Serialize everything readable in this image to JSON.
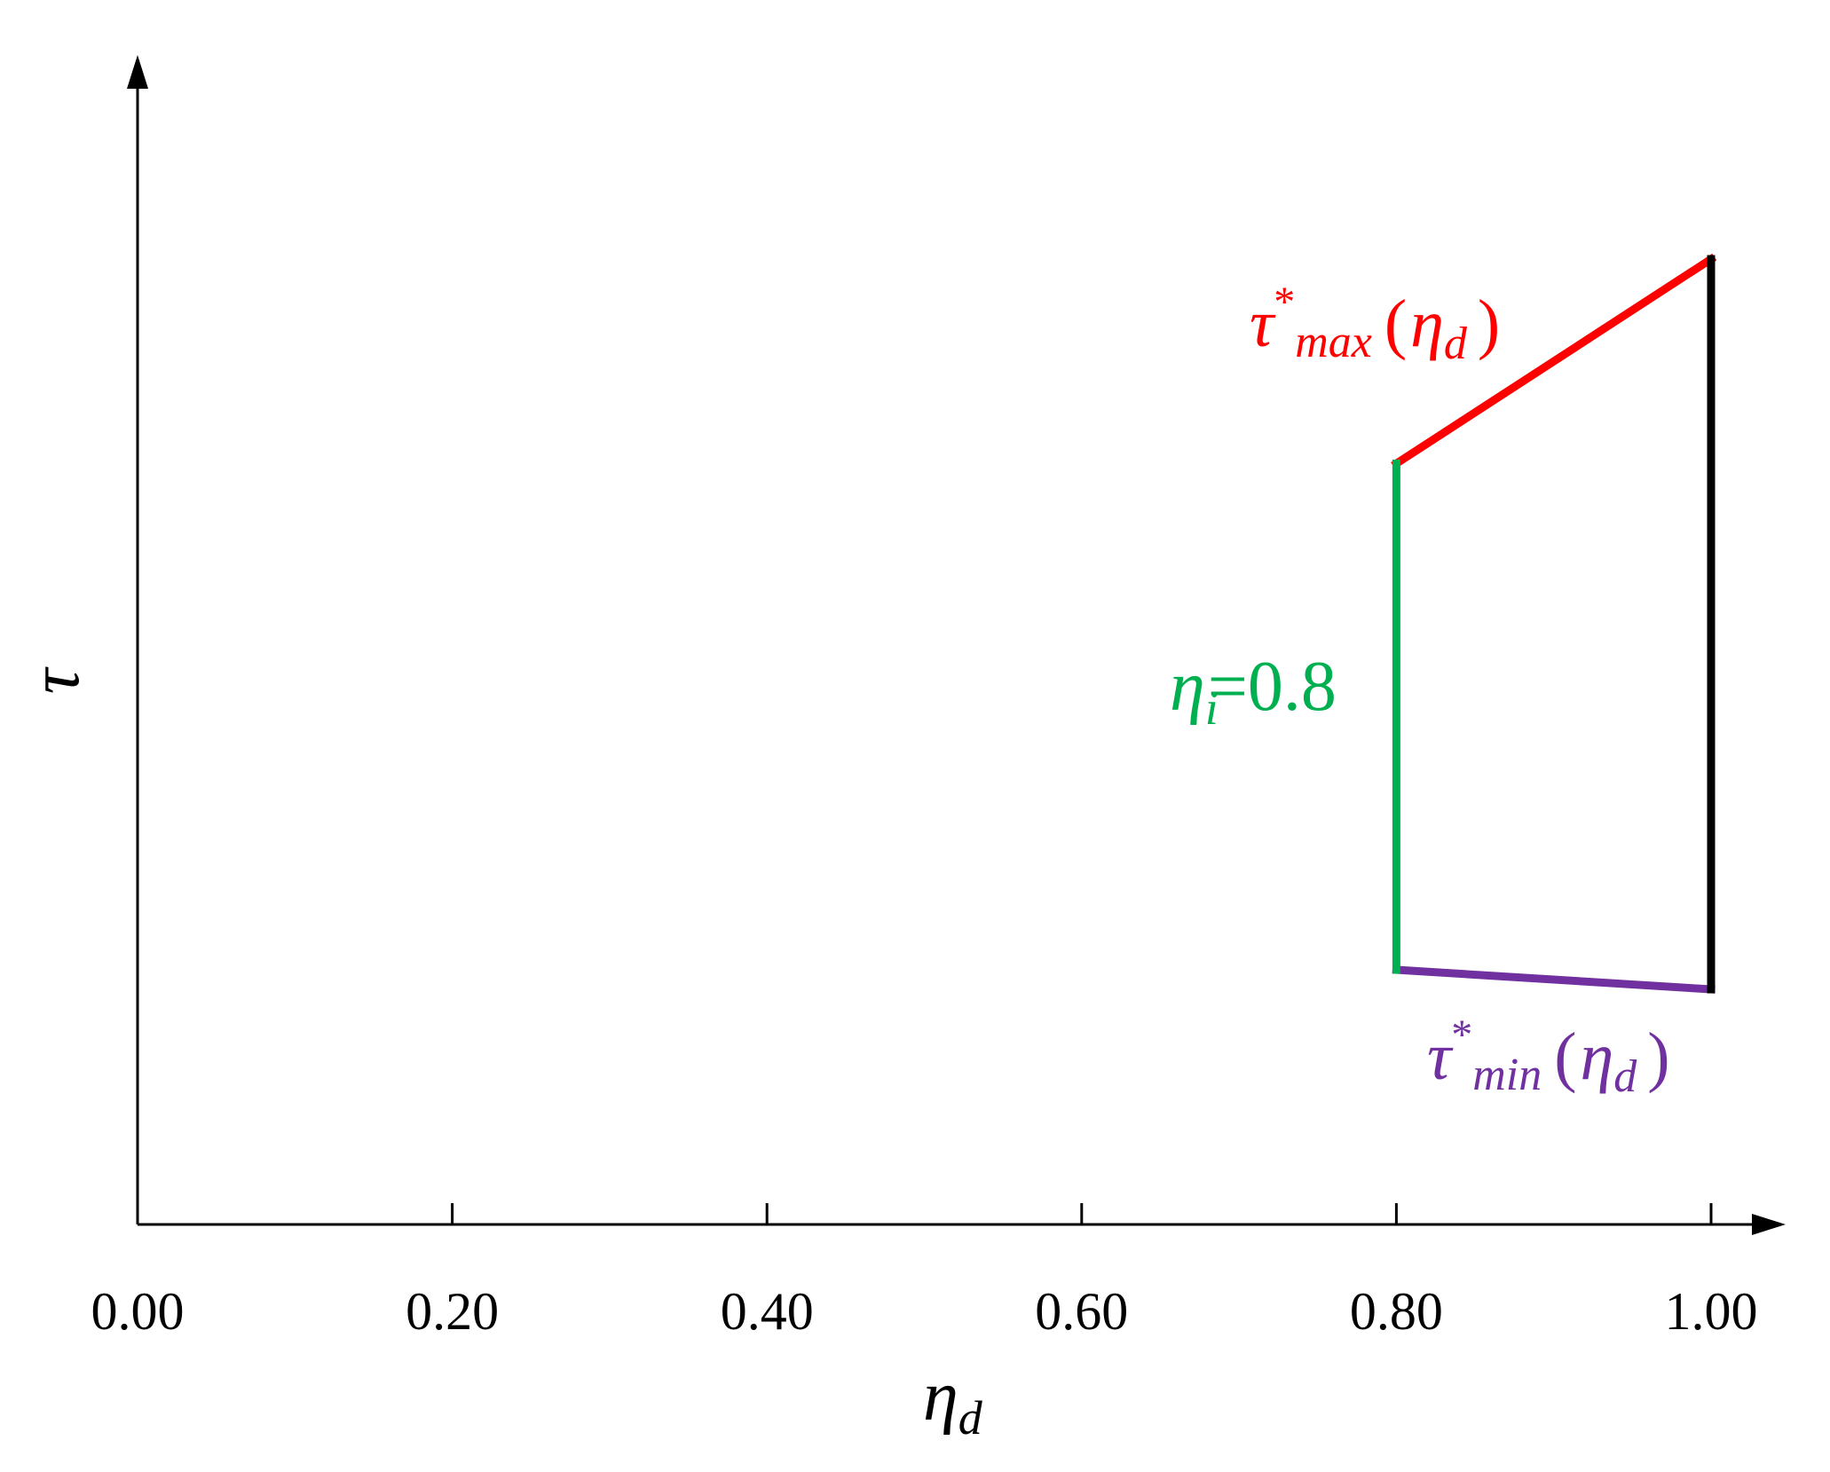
{
  "chart_data": {
    "type": "line",
    "xlabel": "η",
    "xlabel_sub": "d",
    "ylabel": "τ",
    "xlim": [
      0,
      1.0
    ],
    "x_ticks": [
      0.0,
      0.2,
      0.4,
      0.6,
      0.8,
      1.0
    ],
    "x_tick_labels": [
      "0.00",
      "0.20",
      "0.40",
      "0.60",
      "0.80",
      "1.00"
    ],
    "y_ticks": [],
    "grid": false,
    "legend": "none",
    "series": [
      {
        "key": "max",
        "color": "#ff0000",
        "label": {
          "base": "τ",
          "sup": "*",
          "sub": "max",
          "arg": "(",
          "arg_var": "η",
          "arg_sub": "d",
          "arg_close": ")"
        },
        "x": [
          0.8,
          1.0
        ],
        "y": [
          0.79,
          1.0
        ]
      },
      {
        "key": "min",
        "color": "#7030a0",
        "label": {
          "base": "τ",
          "sup": "*",
          "sub": "min",
          "arg": "(",
          "arg_var": "η",
          "arg_sub": "d",
          "arg_close": ")"
        },
        "x": [
          0.8,
          1.0
        ],
        "y": [
          0.27,
          0.25
        ]
      },
      {
        "key": "eta_i",
        "color": "#00b050",
        "label": {
          "var": "η",
          "sub": "i",
          "eq": "=0.8"
        },
        "x": [
          0.8,
          0.8
        ],
        "y": [
          0.27,
          0.79
        ]
      },
      {
        "key": "eta_one",
        "color": "#000000",
        "x": [
          1.0,
          1.0
        ],
        "y": [
          0.25,
          1.0
        ]
      }
    ]
  }
}
